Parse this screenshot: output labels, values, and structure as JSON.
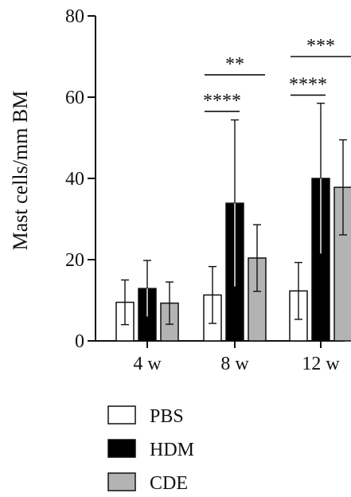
{
  "chart_data": {
    "type": "bar",
    "ylabel": "Mast cells/mm BM",
    "ylim": [
      0,
      80
    ],
    "yticks": [
      0,
      20,
      40,
      60,
      80
    ],
    "categories": [
      "4 w",
      "8 w",
      "12 w"
    ],
    "series": [
      {
        "name": "PBS",
        "color": "#ffffff",
        "values": [
          9.5,
          11.3,
          12.3
        ],
        "errors": [
          5.5,
          7.0,
          7.0
        ]
      },
      {
        "name": "HDM",
        "color": "#000000",
        "values": [
          12.9,
          33.9,
          40.0
        ],
        "errors": [
          6.9,
          20.5,
          18.5
        ]
      },
      {
        "name": "CDE",
        "color": "#b3b3b3",
        "values": [
          9.3,
          20.4,
          37.8
        ],
        "errors": [
          5.2,
          8.2,
          11.7
        ]
      }
    ],
    "significance": [
      {
        "group": 1,
        "from_series": 0,
        "to_series": 1,
        "y": 56.5,
        "label": "****"
      },
      {
        "group": 1,
        "from_series": 0,
        "to_series": 2,
        "y": 65.5,
        "label": "**"
      },
      {
        "group": 2,
        "from_series": 0,
        "to_series": 1,
        "y": 60.5,
        "label": "****"
      },
      {
        "group": 2,
        "from_series": 0,
        "to_series": 2,
        "y": 70.0,
        "label": "***"
      }
    ],
    "legend": {
      "position": "bottom",
      "entries": [
        "PBS",
        "HDM",
        "CDE"
      ]
    },
    "grid": false
  }
}
